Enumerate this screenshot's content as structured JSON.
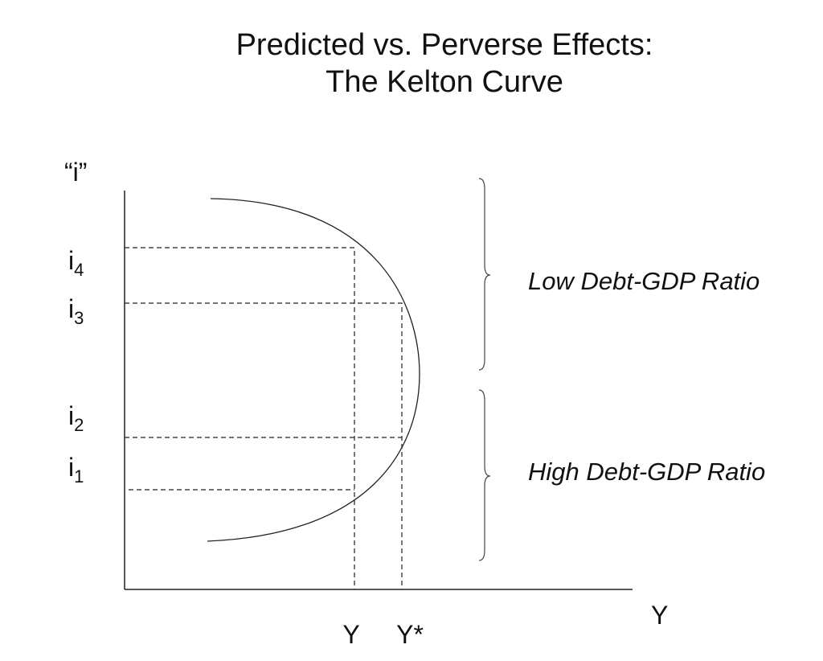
{
  "title": {
    "line1": "Predicted vs. Perverse Effects:",
    "line2": "The Kelton Curve"
  },
  "y_axis": {
    "label": "“i”",
    "ticks": [
      {
        "base": "i",
        "sub": "4"
      },
      {
        "base": "i",
        "sub": "3"
      },
      {
        "base": "i",
        "sub": "2"
      },
      {
        "base": "i",
        "sub": "1"
      }
    ]
  },
  "x_axis": {
    "label": "Y",
    "ticks": [
      "Y",
      "Y*"
    ]
  },
  "regions": [
    "Low Debt-GDP Ratio",
    "High Debt-GDP Ratio"
  ]
}
